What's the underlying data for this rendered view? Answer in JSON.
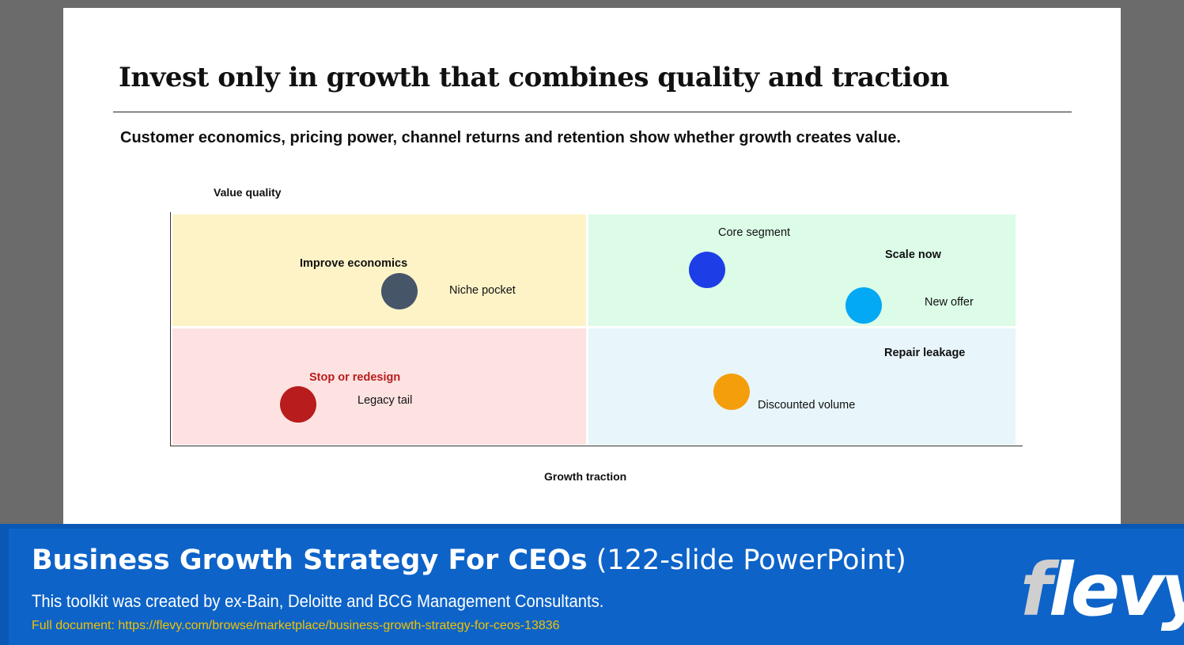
{
  "slide": {
    "title": "Invest only in growth that combines quality and traction",
    "subtitle": "Customer economics, pricing power, channel returns and retention show whether growth creates value."
  },
  "chart_data": {
    "type": "scatter",
    "ylabel": "Value quality",
    "xlabel": "Growth traction",
    "quadrants": [
      {
        "name": "Improve economics",
        "color": "#fef3c7"
      },
      {
        "name": "Scale now",
        "color": "#dcfce7"
      },
      {
        "name": "Stop or redesign",
        "color": "#fee2e2"
      },
      {
        "name": "Repair leakage",
        "color": "#e8f6fb"
      }
    ],
    "points": [
      {
        "label": "Niche pocket",
        "color": "#475569"
      },
      {
        "label": "Core segment",
        "color": "#1d3ee6"
      },
      {
        "label": "New offer",
        "color": "#03a9f4"
      },
      {
        "label": "Legacy tail",
        "color": "#b91c1c"
      },
      {
        "label": "Discounted volume",
        "color": "#f59e0b"
      }
    ],
    "accent_colors": {
      "stop_label": "#b91c1c"
    }
  },
  "banner": {
    "title_bold": "Business Growth Strategy For CEOs",
    "title_light": "(122-slide PowerPoint)",
    "description": "This toolkit was created by ex-Bain, Deloitte and BCG Management Consultants.",
    "link": "Full document: https://flevy.com/browse/marketplace/business-growth-strategy-for-ceos-13836",
    "logo": "flevy"
  }
}
